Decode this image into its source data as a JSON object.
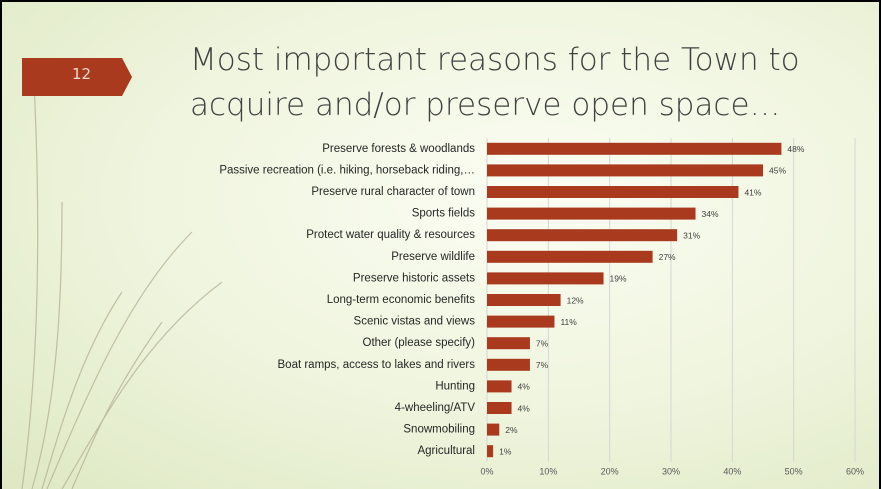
{
  "slide_number": "12",
  "chart_data": {
    "type": "hbar",
    "title": "Most important reasons for the Town to acquire and/or preserve open space…",
    "categories": [
      "Preserve forests & woodlands",
      "Passive recreation (i.e. hiking, horseback riding,…",
      "Preserve rural character of town",
      "Sports fields",
      "Protect water quality & resources",
      "Preserve wildlife",
      "Preserve historic assets",
      "Long-term economic benefits",
      "Scenic vistas and views",
      "Other (please specify)",
      "Boat ramps, access to lakes and rivers",
      "Hunting",
      "4-wheeling/ATV",
      "Snowmobiling",
      "Agricultural"
    ],
    "values": [
      48,
      45,
      41,
      34,
      31,
      27,
      19,
      12,
      11,
      7,
      7,
      4,
      4,
      2,
      1
    ],
    "value_labels": [
      "48%",
      "45%",
      "41%",
      "34%",
      "31%",
      "27%",
      "19%",
      "12%",
      "11%",
      "7%",
      "7%",
      "4%",
      "4%",
      "2%",
      "1%"
    ],
    "color": "#a93a1e",
    "xlim": [
      0,
      60
    ],
    "xticks": [
      {
        "value": 0,
        "label": "0%"
      },
      {
        "value": 10,
        "label": "10%"
      },
      {
        "value": 20,
        "label": "20%"
      },
      {
        "value": 30,
        "label": "30%"
      },
      {
        "value": 40,
        "label": "40%"
      },
      {
        "value": 50,
        "label": "50%"
      },
      {
        "value": 60,
        "label": "60%"
      }
    ],
    "grid": true
  }
}
